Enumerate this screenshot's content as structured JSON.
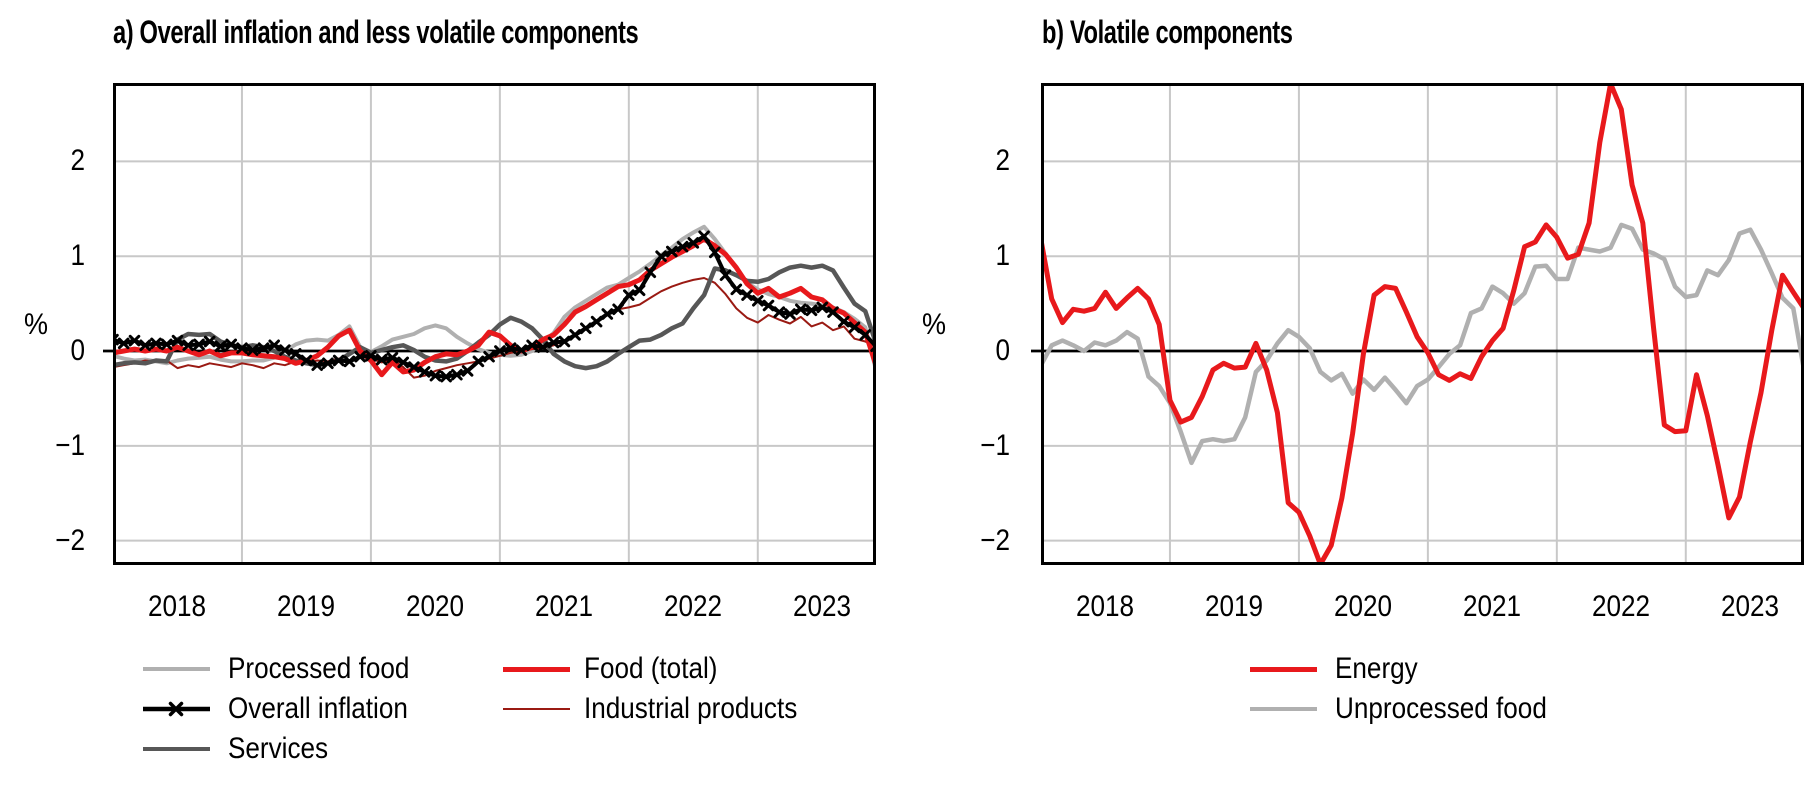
{
  "figure_type": "two-panel monthly line chart",
  "chart_data": {
    "type": "line",
    "frequency": "monthly",
    "x_start": "2018-01",
    "x_end": "2023-12",
    "grid": true,
    "legend_position": "bottom",
    "y_axis_label": "%",
    "ylim": [
      -2.26,
      2.83
    ],
    "y_ticks": [
      {
        "v": 2,
        "label": "2"
      },
      {
        "v": 1,
        "label": "1"
      },
      {
        "v": 0,
        "label": "0"
      },
      {
        "v": -1,
        "label": "−1"
      },
      {
        "v": -2,
        "label": "−2"
      }
    ],
    "y_grid_values": [
      2,
      1,
      -1,
      -2
    ],
    "x_tick_labels": [
      "2018",
      "2019",
      "2020",
      "2021",
      "2022",
      "2023"
    ],
    "x_label_month_indices": [
      6,
      18,
      30,
      42,
      54,
      66
    ],
    "x_grid_month_indices": [
      12,
      24,
      36,
      48,
      60
    ],
    "colors": {
      "background": "#ffffff",
      "text": "#000000",
      "grid": "#c8c8c8",
      "zero_line": "#000000",
      "red": "#e8191c",
      "dark_red": "#9a1a13",
      "light_gray": "#b0b0b0",
      "dark_gray": "#575757",
      "black": "#000000"
    },
    "panels": [
      {
        "id": "a",
        "title": "a) Overall inflation and less volatile components",
        "series": [
          {
            "key": "processed_food",
            "name": "Processed food",
            "color": "#b0b0b0",
            "width": 4,
            "marker": null,
            "values": [
              -0.05,
              -0.08,
              -0.1,
              -0.09,
              -0.11,
              -0.13,
              -0.1,
              -0.08,
              -0.07,
              -0.06,
              -0.09,
              -0.11,
              -0.11,
              -0.1,
              -0.1,
              -0.07,
              0.0,
              0.07,
              0.11,
              0.12,
              0.11,
              0.17,
              0.26,
              0.04,
              -0.01,
              0.05,
              0.12,
              0.15,
              0.18,
              0.24,
              0.27,
              0.24,
              0.15,
              0.08,
              0.02,
              -0.02,
              -0.04,
              -0.05,
              -0.04,
              0.0,
              0.09,
              0.19,
              0.36,
              0.46,
              0.53,
              0.6,
              0.67,
              0.7,
              0.77,
              0.84,
              0.92,
              1.01,
              1.09,
              1.18,
              1.25,
              1.31,
              1.18,
              1.03,
              0.88,
              0.72,
              0.65,
              0.6,
              0.57,
              0.53,
              0.51,
              0.5,
              0.48,
              0.46,
              0.41,
              0.34,
              0.25,
              -0.2
            ]
          },
          {
            "key": "industrial_products",
            "name": "Industrial products",
            "color": "#9a1a13",
            "width": 2,
            "marker": null,
            "values": [
              -0.17,
              -0.15,
              -0.13,
              -0.1,
              -0.11,
              -0.1,
              -0.18,
              -0.15,
              -0.17,
              -0.13,
              -0.15,
              -0.17,
              -0.13,
              -0.15,
              -0.18,
              -0.13,
              -0.15,
              -0.11,
              -0.13,
              -0.1,
              -0.11,
              -0.08,
              -0.1,
              -0.06,
              -0.08,
              -0.12,
              -0.09,
              -0.17,
              -0.28,
              -0.26,
              -0.21,
              -0.18,
              -0.15,
              -0.13,
              -0.11,
              -0.08,
              -0.05,
              -0.02,
              0.0,
              0.02,
              0.03,
              0.06,
              0.11,
              0.18,
              0.25,
              0.32,
              0.39,
              0.44,
              0.46,
              0.49,
              0.56,
              0.63,
              0.68,
              0.72,
              0.75,
              0.77,
              0.72,
              0.6,
              0.45,
              0.35,
              0.3,
              0.38,
              0.33,
              0.29,
              0.36,
              0.26,
              0.3,
              0.22,
              0.26,
              0.13,
              0.1,
              0.04
            ]
          },
          {
            "key": "services",
            "name": "Services",
            "color": "#575757",
            "width": 4.5,
            "marker": null,
            "values": [
              -0.15,
              -0.13,
              -0.12,
              -0.13,
              -0.1,
              -0.11,
              0.12,
              0.18,
              0.17,
              0.18,
              0.1,
              0.06,
              0.04,
              0.06,
              0.04,
              0.0,
              -0.06,
              -0.1,
              -0.13,
              -0.15,
              -0.13,
              -0.1,
              -0.03,
              0.04,
              -0.02,
              0.01,
              0.04,
              0.06,
              0.01,
              -0.06,
              -0.1,
              -0.11,
              -0.08,
              0.0,
              0.09,
              0.17,
              0.28,
              0.35,
              0.31,
              0.24,
              0.12,
              -0.03,
              -0.11,
              -0.16,
              -0.18,
              -0.16,
              -0.11,
              -0.03,
              0.04,
              0.11,
              0.12,
              0.17,
              0.24,
              0.29,
              0.45,
              0.59,
              0.87,
              0.85,
              0.8,
              0.74,
              0.73,
              0.76,
              0.83,
              0.88,
              0.9,
              0.88,
              0.9,
              0.85,
              0.67,
              0.5,
              0.42,
              0.08
            ]
          },
          {
            "key": "food_total",
            "name": "Food (total)",
            "color": "#e8191c",
            "width": 5,
            "marker": null,
            "values": [
              -0.02,
              0.0,
              0.02,
              0.0,
              0.02,
              0.0,
              0.04,
              0.0,
              -0.04,
              0.0,
              -0.05,
              -0.02,
              -0.02,
              -0.04,
              -0.05,
              -0.06,
              -0.08,
              -0.13,
              -0.1,
              -0.05,
              0.04,
              0.16,
              0.22,
              0.0,
              -0.1,
              -0.25,
              -0.12,
              -0.22,
              -0.2,
              -0.12,
              -0.06,
              -0.03,
              -0.04,
              0.0,
              0.06,
              0.2,
              0.16,
              0.06,
              0.0,
              0.04,
              0.12,
              0.17,
              0.28,
              0.41,
              0.47,
              0.54,
              0.61,
              0.68,
              0.7,
              0.75,
              0.85,
              0.92,
              0.99,
              1.05,
              1.11,
              1.18,
              1.11,
              1.02,
              0.88,
              0.71,
              0.61,
              0.66,
              0.57,
              0.61,
              0.66,
              0.57,
              0.54,
              0.45,
              0.4,
              0.3,
              0.2,
              -0.15
            ]
          },
          {
            "key": "overall_inflation",
            "name": "Overall inflation",
            "color": "#000000",
            "width": 4,
            "marker": "x",
            "values": [
              0.12,
              0.08,
              0.11,
              0.06,
              0.08,
              0.07,
              0.11,
              0.06,
              0.07,
              0.1,
              0.05,
              0.07,
              0.03,
              0.01,
              0.03,
              0.06,
              0.01,
              -0.03,
              -0.1,
              -0.15,
              -0.13,
              -0.1,
              -0.11,
              -0.06,
              -0.05,
              -0.09,
              -0.07,
              -0.12,
              -0.17,
              -0.22,
              -0.26,
              -0.27,
              -0.25,
              -0.21,
              -0.11,
              -0.06,
              0.0,
              0.03,
              0.01,
              0.06,
              0.04,
              0.09,
              0.1,
              0.17,
              0.24,
              0.31,
              0.39,
              0.44,
              0.59,
              0.64,
              0.83,
              1.0,
              1.05,
              1.1,
              1.14,
              1.21,
              1.04,
              0.8,
              0.65,
              0.59,
              0.53,
              0.48,
              0.41,
              0.39,
              0.44,
              0.43,
              0.46,
              0.41,
              0.31,
              0.25,
              0.17,
              0.05
            ]
          }
        ]
      },
      {
        "id": "b",
        "title": "b) Volatile components",
        "series": [
          {
            "key": "unprocessed_food",
            "name": "Unprocessed food",
            "color": "#b0b0b0",
            "width": 4.5,
            "marker": null,
            "values": [
              -0.15,
              0.06,
              0.11,
              0.06,
              0.0,
              0.09,
              0.06,
              0.11,
              0.2,
              0.13,
              -0.27,
              -0.37,
              -0.55,
              -0.85,
              -1.18,
              -0.95,
              -0.93,
              -0.95,
              -0.93,
              -0.7,
              -0.22,
              -0.1,
              0.08,
              0.22,
              0.15,
              0.03,
              -0.22,
              -0.31,
              -0.24,
              -0.45,
              -0.3,
              -0.41,
              -0.28,
              -0.41,
              -0.55,
              -0.37,
              -0.3,
              -0.17,
              -0.03,
              0.06,
              0.4,
              0.45,
              0.68,
              0.61,
              0.5,
              0.61,
              0.89,
              0.9,
              0.76,
              0.76,
              1.09,
              1.07,
              1.05,
              1.09,
              1.33,
              1.29,
              1.07,
              1.03,
              0.97,
              0.68,
              0.57,
              0.59,
              0.85,
              0.8,
              0.96,
              1.24,
              1.28,
              1.07,
              0.82,
              0.56,
              0.45,
              -0.2
            ]
          },
          {
            "key": "energy",
            "name": "Energy",
            "color": "#e8191c",
            "width": 5,
            "marker": null,
            "values": [
              1.17,
              0.55,
              0.3,
              0.44,
              0.42,
              0.45,
              0.62,
              0.45,
              0.56,
              0.66,
              0.55,
              0.28,
              -0.52,
              -0.75,
              -0.7,
              -0.48,
              -0.2,
              -0.13,
              -0.18,
              -0.17,
              0.08,
              -0.2,
              -0.65,
              -1.6,
              -1.7,
              -1.95,
              -2.25,
              -2.05,
              -1.55,
              -0.87,
              -0.03,
              0.59,
              0.68,
              0.66,
              0.41,
              0.15,
              -0.02,
              -0.25,
              -0.31,
              -0.24,
              -0.29,
              -0.06,
              0.11,
              0.24,
              0.64,
              1.1,
              1.15,
              1.33,
              1.2,
              0.98,
              1.02,
              1.35,
              2.2,
              2.82,
              2.55,
              1.75,
              1.35,
              0.25,
              -0.78,
              -0.85,
              -0.84,
              -0.25,
              -0.68,
              -1.2,
              -1.76,
              -1.54,
              -0.96,
              -0.44,
              0.22,
              0.8,
              0.62,
              0.45
            ]
          }
        ]
      }
    ]
  }
}
